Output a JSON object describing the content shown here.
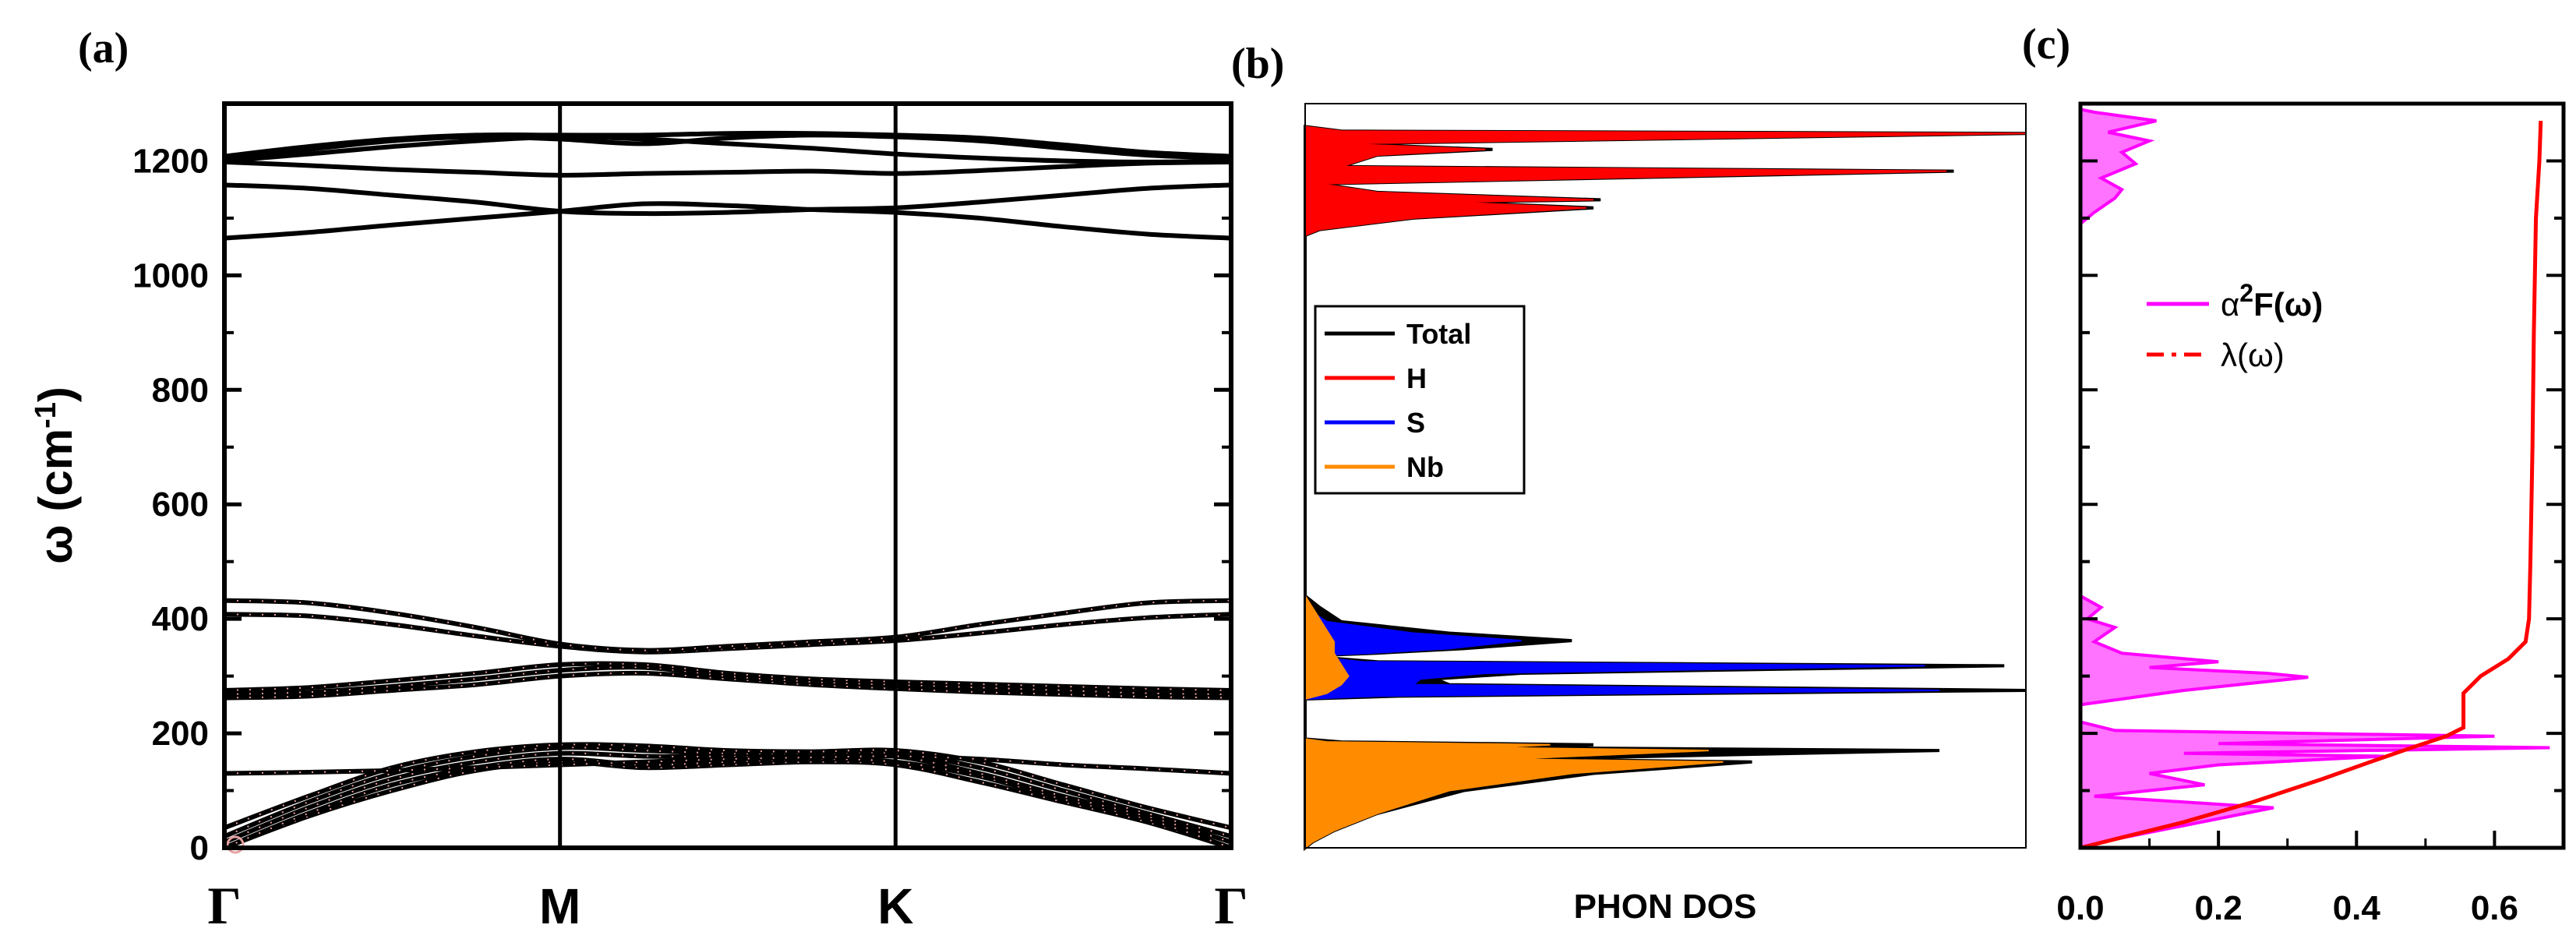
{
  "chart_data": [
    {
      "panel": "(a)",
      "type": "line",
      "title": "",
      "ylabel": "ω (cm⁻¹)",
      "ylabel_symbol": "ω",
      "ylabel_unit_open": " (cm",
      "ylabel_unit_sup": "-1",
      "ylabel_unit_close": ")",
      "ylim": [
        0,
        1300
      ],
      "yticks": [
        0,
        200,
        400,
        600,
        800,
        1000,
        1200
      ],
      "xlim": [
        0,
        3
      ],
      "kpoints": [
        {
          "label": "Γ",
          "x": 0
        },
        {
          "label": "M",
          "x": 1
        },
        {
          "label": "K",
          "x": 2
        },
        {
          "label": "Γ",
          "x": 3
        }
      ],
      "x": [
        0,
        0.25,
        0.5,
        0.75,
        1,
        1.25,
        1.5,
        1.75,
        2,
        2.25,
        2.5,
        2.75,
        3
      ],
      "series": [
        {
          "name": "b1",
          "values": [
            0,
            55,
            100,
            135,
            150,
            140,
            145,
            150,
            145,
            115,
            80,
            45,
            0
          ]
        },
        {
          "name": "b2",
          "values": [
            0,
            60,
            110,
            140,
            155,
            145,
            150,
            155,
            150,
            125,
            85,
            50,
            0
          ]
        },
        {
          "name": "b3",
          "values": [
            10,
            70,
            120,
            150,
            165,
            160,
            160,
            165,
            160,
            130,
            90,
            55,
            10
          ]
        },
        {
          "name": "b4",
          "values": [
            20,
            80,
            130,
            160,
            175,
            170,
            165,
            165,
            165,
            140,
            100,
            60,
            20
          ]
        },
        {
          "name": "b5",
          "values": [
            35,
            90,
            140,
            168,
            180,
            178,
            170,
            168,
            170,
            150,
            110,
            70,
            35
          ]
        },
        {
          "name": "b6",
          "values": [
            130,
            132,
            135,
            140,
            145,
            150,
            155,
            158,
            160,
            155,
            145,
            138,
            130
          ]
        },
        {
          "name": "b7",
          "values": [
            262,
            265,
            275,
            285,
            300,
            305,
            295,
            285,
            278,
            272,
            268,
            264,
            262
          ]
        },
        {
          "name": "b8",
          "values": [
            268,
            272,
            282,
            295,
            310,
            315,
            300,
            290,
            285,
            280,
            275,
            270,
            268
          ]
        },
        {
          "name": "b9",
          "values": [
            275,
            280,
            292,
            305,
            320,
            320,
            305,
            295,
            290,
            286,
            282,
            278,
            275
          ]
        },
        {
          "name": "b10",
          "values": [
            408,
            405,
            390,
            370,
            352,
            342,
            348,
            355,
            362,
            375,
            390,
            402,
            408
          ]
        },
        {
          "name": "b11",
          "values": [
            432,
            428,
            410,
            385,
            356,
            345,
            352,
            360,
            368,
            390,
            410,
            428,
            432
          ]
        },
        {
          "name": "b12",
          "values": [
            1065,
            1075,
            1088,
            1100,
            1112,
            1125,
            1122,
            1115,
            1110,
            1100,
            1085,
            1072,
            1065
          ]
        },
        {
          "name": "b13",
          "values": [
            1158,
            1152,
            1140,
            1128,
            1112,
            1108,
            1110,
            1115,
            1118,
            1128,
            1140,
            1152,
            1158
          ]
        },
        {
          "name": "b14",
          "values": [
            1198,
            1192,
            1185,
            1180,
            1175,
            1178,
            1180,
            1182,
            1178,
            1183,
            1190,
            1196,
            1198
          ]
        },
        {
          "name": "b15",
          "values": [
            1200,
            1212,
            1225,
            1235,
            1242,
            1238,
            1230,
            1222,
            1212,
            1205,
            1200,
            1198,
            1200
          ]
        },
        {
          "name": "b16",
          "values": [
            1205,
            1220,
            1235,
            1242,
            1238,
            1230,
            1240,
            1245,
            1242,
            1235,
            1222,
            1210,
            1205
          ]
        },
        {
          "name": "b17",
          "values": [
            1208,
            1225,
            1238,
            1245,
            1245,
            1245,
            1248,
            1248,
            1245,
            1240,
            1228,
            1215,
            1208
          ]
        }
      ],
      "line_color": "#000000",
      "marker_color": "#e8a0a0"
    },
    {
      "panel": "(b)",
      "type": "area",
      "xlabel": "PHON DOS",
      "ylim": [
        0,
        1300
      ],
      "xlim": [
        0,
        1
      ],
      "legend_loc": "center-left",
      "legend": [
        {
          "name": "Total",
          "color": "#000000"
        },
        {
          "name": "H",
          "color": "#ff0000"
        },
        {
          "name": "S",
          "color": "#0000ff"
        },
        {
          "name": "Nb",
          "color": "#ff8c00"
        }
      ],
      "series": [
        {
          "name": "Total",
          "color": "#000000",
          "points": [
            [
              0,
              0
            ],
            [
              0.01,
              10
            ],
            [
              0.04,
              30
            ],
            [
              0.1,
              60
            ],
            [
              0.22,
              100
            ],
            [
              0.4,
              130
            ],
            [
              0.62,
              150
            ],
            [
              0.3,
              155
            ],
            [
              0.88,
              170
            ],
            [
              0.3,
              175
            ],
            [
              0.4,
              180
            ],
            [
              0.05,
              185
            ],
            [
              0,
              190
            ],
            [
              0,
              260
            ],
            [
              0.13,
              265
            ],
            [
              1.0,
              275
            ],
            [
              0.2,
              285
            ],
            [
              0.18,
              295
            ],
            [
              0.3,
              305
            ],
            [
              0.97,
              318
            ],
            [
              0.1,
              325
            ],
            [
              0,
              335
            ],
            [
              0.1,
              340
            ],
            [
              0.22,
              348
            ],
            [
              0.37,
              362
            ],
            [
              0.2,
              375
            ],
            [
              0.05,
              395
            ],
            [
              0.02,
              420
            ],
            [
              0,
              440
            ],
            [
              0,
              1070
            ],
            [
              0.02,
              1080
            ],
            [
              0.15,
              1100
            ],
            [
              0.4,
              1118
            ],
            [
              0.2,
              1128
            ],
            [
              0.41,
              1132
            ],
            [
              0.1,
              1145
            ],
            [
              0.02,
              1160
            ],
            [
              0.9,
              1182
            ],
            [
              0.05,
              1190
            ],
            [
              0.1,
              1210
            ],
            [
              0.26,
              1220
            ],
            [
              0.05,
              1230
            ],
            [
              1.0,
              1248
            ],
            [
              0.05,
              1252
            ],
            [
              0,
              1260
            ]
          ]
        },
        {
          "name": "H",
          "color": "#ff0000",
          "points": [
            [
              0,
              1070
            ],
            [
              0.02,
              1080
            ],
            [
              0.15,
              1100
            ],
            [
              0.39,
              1118
            ],
            [
              0.2,
              1128
            ],
            [
              0.4,
              1132
            ],
            [
              0.1,
              1145
            ],
            [
              0.02,
              1160
            ],
            [
              0.89,
              1182
            ],
            [
              0.05,
              1190
            ],
            [
              0.1,
              1210
            ],
            [
              0.25,
              1220
            ],
            [
              0.05,
              1230
            ],
            [
              1.0,
              1248
            ],
            [
              0.05,
              1252
            ],
            [
              0,
              1260
            ]
          ]
        },
        {
          "name": "S",
          "color": "#0000ff",
          "points": [
            [
              0,
              260
            ],
            [
              0.1,
              265
            ],
            [
              0.88,
              275
            ],
            [
              0.15,
              285
            ],
            [
              0.16,
              295
            ],
            [
              0.25,
              305
            ],
            [
              0.86,
              318
            ],
            [
              0.08,
              325
            ],
            [
              0,
              335
            ],
            [
              0.09,
              340
            ],
            [
              0.2,
              348
            ],
            [
              0.3,
              362
            ],
            [
              0.15,
              375
            ],
            [
              0.03,
              395
            ],
            [
              0,
              420
            ]
          ]
        },
        {
          "name": "Nb",
          "color": "#ff8c00",
          "points": [
            [
              0,
              0
            ],
            [
              0.01,
              10
            ],
            [
              0.04,
              30
            ],
            [
              0.1,
              60
            ],
            [
              0.2,
              100
            ],
            [
              0.37,
              130
            ],
            [
              0.58,
              150
            ],
            [
              0.28,
              155
            ],
            [
              0.56,
              170
            ],
            [
              0.26,
              175
            ],
            [
              0.34,
              180
            ],
            [
              0.03,
              185
            ],
            [
              0,
              190
            ],
            [
              0,
              260
            ],
            [
              0.03,
              270
            ],
            [
              0.05,
              285
            ],
            [
              0.06,
              300
            ],
            [
              0.05,
              320
            ],
            [
              0.04,
              340
            ],
            [
              0.04,
              360
            ],
            [
              0.03,
              380
            ],
            [
              0.02,
              400
            ],
            [
              0.01,
              420
            ],
            [
              0,
              440
            ]
          ]
        }
      ]
    },
    {
      "panel": "(c)",
      "type": "line",
      "xlim": [
        0,
        0.7
      ],
      "ylim": [
        0,
        1300
      ],
      "xticks": [
        0.0,
        0.2,
        0.4,
        0.6
      ],
      "xticklabels": [
        "0.0",
        "0.2",
        "0.4",
        "0.6"
      ],
      "legend_loc": "upper-left",
      "legend": [
        {
          "name": "α²F(ω)",
          "prefix": "α",
          "sup": "2",
          "suffix": "F(ω)",
          "color": "#ff00ff",
          "style": "solid"
        },
        {
          "name": "λ(ω)",
          "color": "#ff0000",
          "style": "dash-dot"
        }
      ],
      "series": [
        {
          "name": "a2F",
          "color": "#ff00ff",
          "points": [
            [
              0,
              0
            ],
            [
              0.05,
              15
            ],
            [
              0.28,
              70
            ],
            [
              0.02,
              90
            ],
            [
              0.18,
              110
            ],
            [
              0.1,
              130
            ],
            [
              0.2,
              145
            ],
            [
              0.44,
              160
            ],
            [
              0.15,
              165
            ],
            [
              0.68,
              175
            ],
            [
              0.2,
              182
            ],
            [
              0.6,
              195
            ],
            [
              0.05,
              205
            ],
            [
              0,
              220
            ],
            [
              0,
              250
            ],
            [
              0.15,
              275
            ],
            [
              0.33,
              298
            ],
            [
              0.27,
              305
            ],
            [
              0.1,
              315
            ],
            [
              0.2,
              325
            ],
            [
              0.06,
              340
            ],
            [
              0.02,
              360
            ],
            [
              0.05,
              385
            ],
            [
              0.01,
              400
            ],
            [
              0.03,
              420
            ],
            [
              0,
              440
            ],
            [
              0,
              1090
            ],
            [
              0.02,
              1110
            ],
            [
              0.05,
              1135
            ],
            [
              0.06,
              1150
            ],
            [
              0.03,
              1170
            ],
            [
              0.08,
              1195
            ],
            [
              0.06,
              1215
            ],
            [
              0.1,
              1235
            ],
            [
              0.04,
              1250
            ],
            [
              0.11,
              1270
            ],
            [
              0.02,
              1285
            ],
            [
              0,
              1290
            ]
          ]
        },
        {
          "name": "lambda",
          "color": "#ff0000",
          "points": [
            [
              0.0,
              0
            ],
            [
              0.05,
              15
            ],
            [
              0.15,
              45
            ],
            [
              0.25,
              80
            ],
            [
              0.35,
              120
            ],
            [
              0.42,
              150
            ],
            [
              0.48,
              175
            ],
            [
              0.53,
              195
            ],
            [
              0.555,
              210
            ],
            [
              0.555,
              270
            ],
            [
              0.58,
              300
            ],
            [
              0.62,
              330
            ],
            [
              0.645,
              360
            ],
            [
              0.65,
              400
            ],
            [
              0.652,
              500
            ],
            [
              0.655,
              700
            ],
            [
              0.657,
              900
            ],
            [
              0.66,
              1100
            ],
            [
              0.665,
              1200
            ],
            [
              0.667,
              1270
            ]
          ]
        }
      ]
    }
  ]
}
